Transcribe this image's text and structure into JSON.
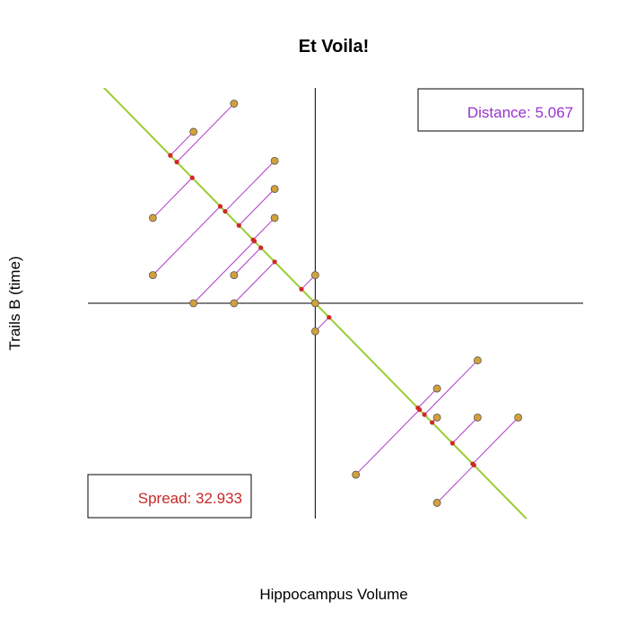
{
  "chart_data": {
    "type": "scatter",
    "title": "Et Voila!",
    "xlabel": "Hippocampus Volume",
    "ylabel": "Trails B (time)",
    "xlim": [
      -2.8,
      3.3
    ],
    "ylim": [
      -2.6,
      2.6
    ],
    "axes_through_origin": true,
    "grid": false,
    "fit_line": {
      "slope": -1.0,
      "intercept": 0.0,
      "color": "#9acd32"
    },
    "points": [
      {
        "x": -1.0,
        "y": 2.41
      },
      {
        "x": -1.5,
        "y": 2.07
      },
      {
        "x": -0.5,
        "y": 1.72
      },
      {
        "x": -0.5,
        "y": 1.38
      },
      {
        "x": -2.0,
        "y": 1.03
      },
      {
        "x": -0.5,
        "y": 1.03
      },
      {
        "x": -2.0,
        "y": 0.34
      },
      {
        "x": -1.0,
        "y": 0.34
      },
      {
        "x": 0.0,
        "y": 0.34
      },
      {
        "x": -1.5,
        "y": 0.0
      },
      {
        "x": -1.0,
        "y": 0.0
      },
      {
        "x": 0.0,
        "y": 0.0
      },
      {
        "x": 0.0,
        "y": -0.34
      },
      {
        "x": 2.0,
        "y": -0.69
      },
      {
        "x": 1.5,
        "y": -1.03
      },
      {
        "x": 1.5,
        "y": -1.38
      },
      {
        "x": 2.0,
        "y": -1.38
      },
      {
        "x": 2.5,
        "y": -1.38
      },
      {
        "x": 0.5,
        "y": -2.07
      },
      {
        "x": 1.5,
        "y": -2.41
      }
    ],
    "distance_label": "Distance: 5.067",
    "spread_label": "Spread: 32.933",
    "distance_legend_position": "top-right",
    "spread_legend_position": "bottom-left",
    "colors": {
      "point_fill": "#d4a03c",
      "point_edge": "#555555",
      "projection_line": "#b03cc8",
      "projection_dot": "#d02828",
      "distance_text": "#9932cc",
      "spread_text": "#c62828",
      "axis": "#000000"
    }
  }
}
